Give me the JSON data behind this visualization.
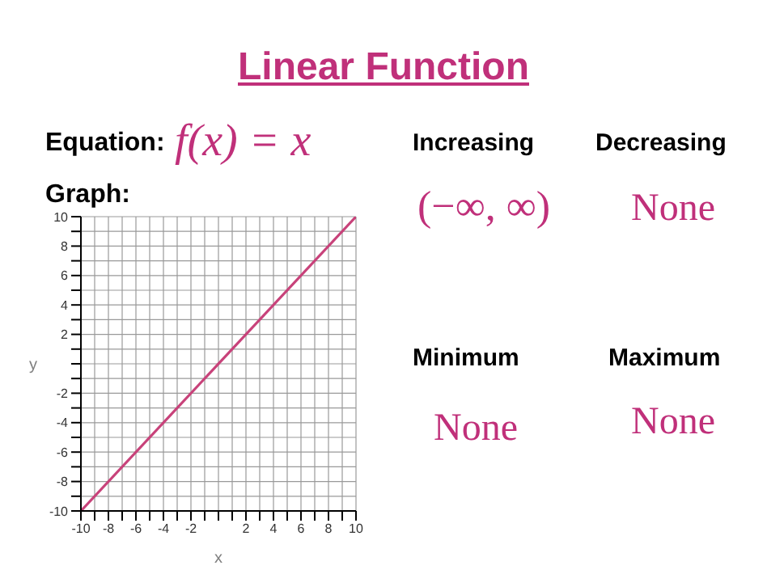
{
  "chart_data": {
    "type": "line",
    "title": "Linear Function",
    "xlabel": "x",
    "ylabel": "y",
    "x": [
      -10,
      10
    ],
    "series": [
      {
        "color": "#c8427a",
        "values": [
          -10,
          10
        ]
      }
    ],
    "xlim": [
      -10,
      10
    ],
    "ylim": [
      -10,
      10
    ],
    "xticks": [
      -10,
      {
        "value": -9,
        "label": null
      },
      -8,
      {
        "value": -7,
        "label": null
      },
      -6,
      {
        "value": -5,
        "label": null
      },
      -4,
      {
        "value": -3,
        "label": null
      },
      -2,
      {
        "value": -1,
        "label": null
      },
      {
        "value": 0,
        "label": null
      },
      {
        "value": 1,
        "label": null
      },
      2,
      {
        "value": 3,
        "label": null
      },
      4,
      {
        "value": 5,
        "label": null
      },
      6,
      {
        "value": 7,
        "label": null
      },
      8,
      {
        "value": 9,
        "label": null
      },
      10
    ],
    "yticks": [
      -10,
      {
        "value": -9,
        "label": null
      },
      -8,
      {
        "value": -7,
        "label": null
      },
      -6,
      {
        "value": -5,
        "label": null
      },
      -4,
      {
        "value": -3,
        "label": null
      },
      -2,
      {
        "value": -1,
        "label": null
      },
      {
        "value": 0,
        "label": null
      },
      {
        "value": 1,
        "label": null
      },
      2,
      {
        "value": 3,
        "label": null
      },
      4,
      {
        "value": 5,
        "label": null
      },
      6,
      {
        "value": 7,
        "label": null
      },
      8,
      {
        "value": 9,
        "label": null
      },
      10
    ],
    "grid": true,
    "marker": "none",
    "line_style": "solid",
    "annotations": [
      "Equation:",
      "f(x) = x",
      "Graph:",
      "Increasing",
      "(−∞, ∞)",
      "Decreasing",
      "None",
      "Minimum",
      "None",
      "Maximum",
      "None"
    ]
  }
}
